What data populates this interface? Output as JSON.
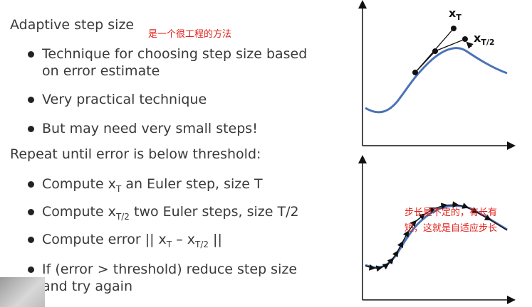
{
  "left": {
    "heading1": "Adaptive step size",
    "note1": "是一个很工程的方法",
    "b1_line1": "Technique for choosing step size based",
    "b1_line2": "on error estimate",
    "b2": "Very practical technique",
    "b3": "But may need very small steps!",
    "heading2": "Repeat until error is below threshold:",
    "c1_pre": "Compute x",
    "c1_sub": "T",
    "c1_post": " an Euler step, size T",
    "c2_pre": "Compute x",
    "c2_sub": "T/2",
    "c2_post": " two Euler steps, size T/2",
    "c3_pre": "Compute error || x",
    "c3_sub1": "T",
    "c3_mid": " – x",
    "c3_sub2": "T/2",
    "c3_post": " ||",
    "c4_line1": "If (error > threshold) reduce step size",
    "c4_line2": "and try again"
  },
  "figure_top": {
    "label_xT": "x",
    "label_xT_sub": "T",
    "label_xT2": "x",
    "label_xT2_sub": "T/2",
    "curve_color": "#4a72b8"
  },
  "figure_bottom": {
    "note_line1": "步长是不定的，有长有",
    "note_line2": "短，这就是自适应步长"
  }
}
